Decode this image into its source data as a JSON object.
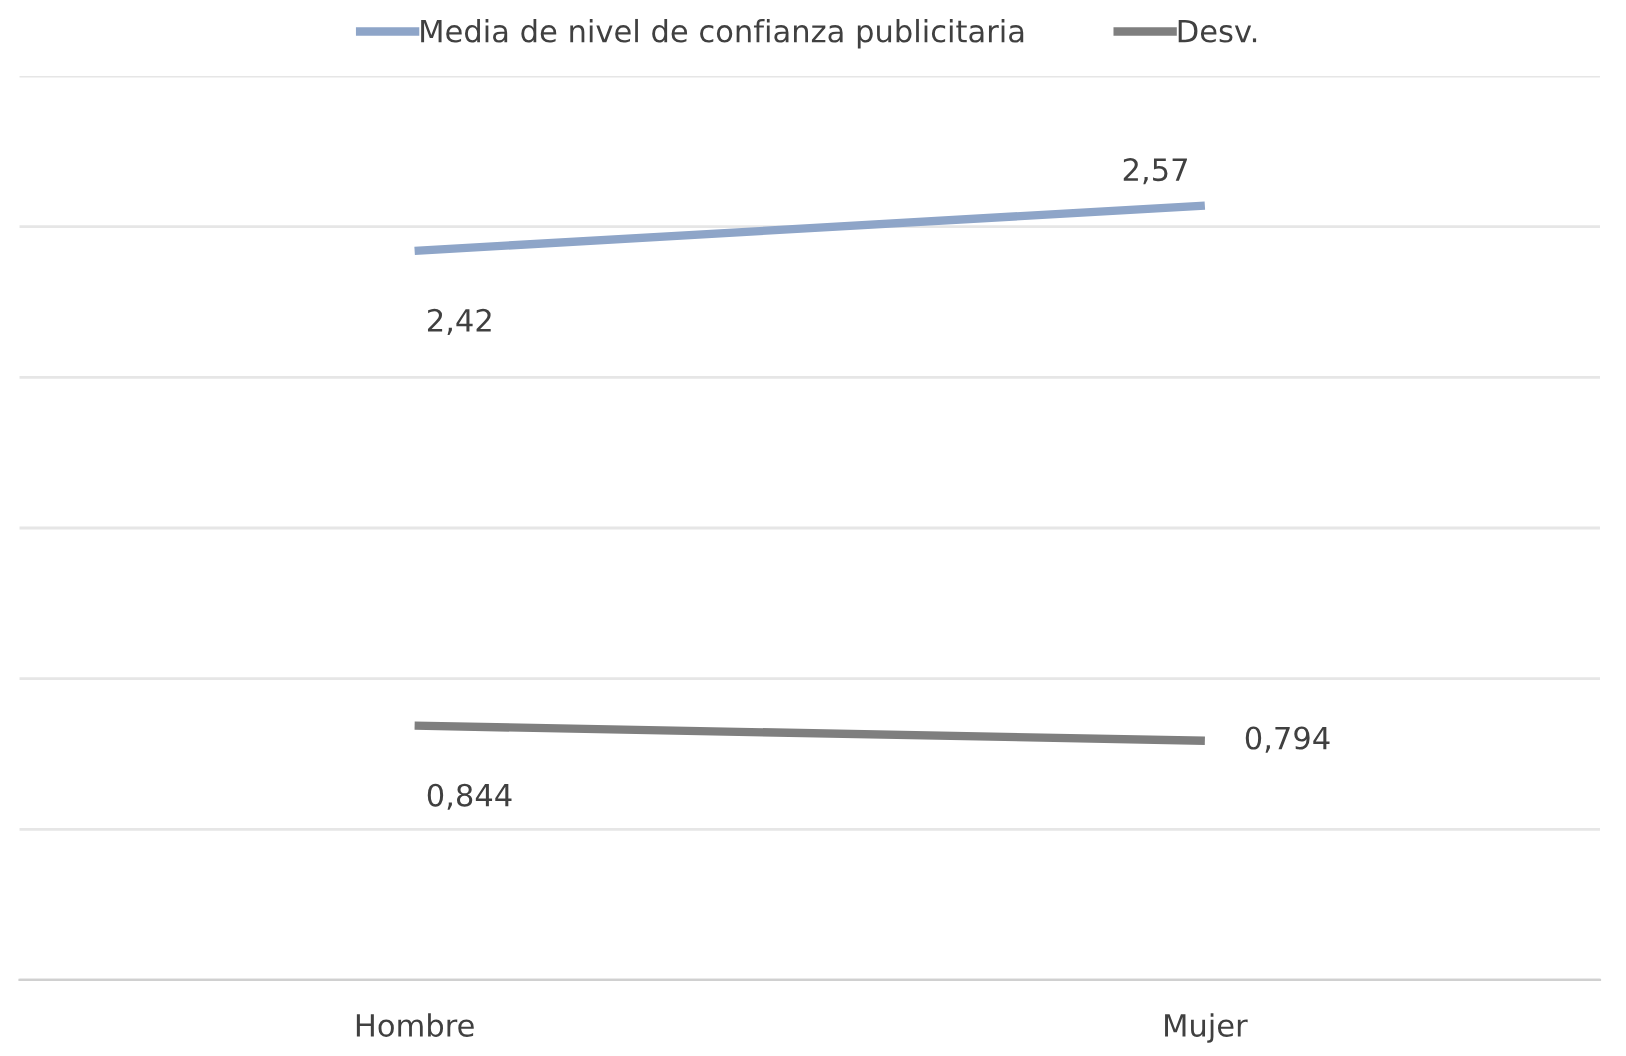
{
  "chart_data": {
    "type": "line",
    "categories": [
      "Hombre",
      "Mujer"
    ],
    "series": [
      {
        "name": "Media de nivel de confianza publicitaria",
        "color": "#8ea5c8",
        "values": [
          2.42,
          2.57
        ],
        "value_labels": [
          "2,42",
          "2,57"
        ]
      },
      {
        "name": "Desv.",
        "color": "#7f7f7f",
        "values": [
          0.844,
          0.794
        ],
        "value_labels": [
          "0,844",
          "0,794"
        ]
      }
    ],
    "ylim": [
      0,
      3
    ],
    "yticks": [
      {
        "value": 0,
        "label": null
      },
      {
        "value": 0.5,
        "label": null
      },
      {
        "value": 1,
        "label": null
      },
      {
        "value": 1.5,
        "label": null
      },
      {
        "value": 2,
        "label": null
      },
      {
        "value": 2.5,
        "label": null
      },
      {
        "value": 3,
        "label": null
      }
    ],
    "grid": "y",
    "legend": "top",
    "marker": "none",
    "line_style": "solid",
    "tick_labels": "x"
  }
}
